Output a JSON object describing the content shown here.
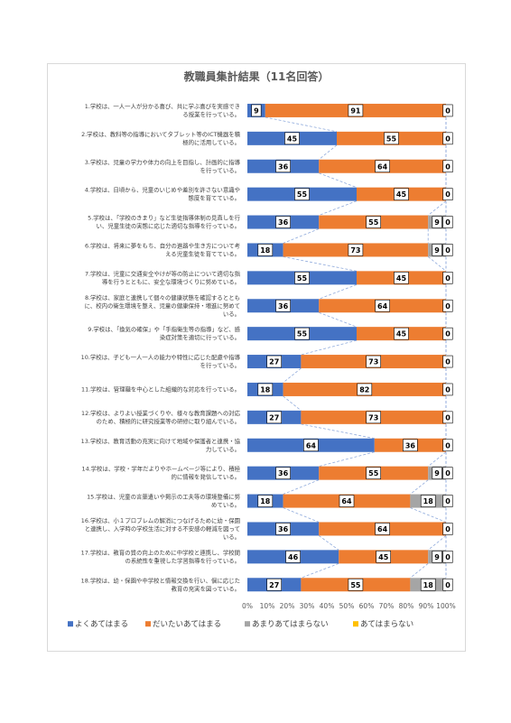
{
  "chart_data": {
    "type": "bar",
    "orientation": "horizontal",
    "stacked": "percent",
    "title": "教職員集計結果（11名回答）",
    "xlim": [
      0,
      100
    ],
    "x_ticks": [
      "0%",
      "10%",
      "20%",
      "30%",
      "40%",
      "50%",
      "60%",
      "70%",
      "80%",
      "90%",
      "100%"
    ],
    "grid": false,
    "legend_position": "bottom",
    "categories": [
      [
        "1.学校は、一人一人が分かる喜び、共に学ぶ喜びを実感でき",
        "る授業を行っている。"
      ],
      [
        "2.学校は、教科等の指導においてタブレット等のICT機器を積",
        "極的に活用している。"
      ],
      [
        "3.学校は、児童の学力や体力の向上を目指し、計画的に指導",
        "を行っている。"
      ],
      [
        "4.学校は、日頃から、児童のいじめや差別を許さない意識や",
        "態度を育てている。"
      ],
      [
        "5.学校は、「学校のきまり」など生徒指導体制の見直しを行",
        "い、児童生徒の実態に応じた適切な指導を行っている。"
      ],
      [
        "6.学校は、将来に夢をもち、自分の進路や生き方について考",
        "える児童生徒を育てている。"
      ],
      [
        "7.学校は、児童に交通安全やけが等の防止について適切な指",
        "導を行うとともに、安全な環境づくりに努めている。"
      ],
      [
        "8.学校は、家庭と連携して個々の健康状態を確認するととも",
        "に、校内の衛生環境を整え、児童の健康保持・増進に努めて",
        "いる。"
      ],
      [
        "9.学校は、「換気の確保」や「手指衛生等の指導」など、感",
        "染症対策を適切に行っている。"
      ],
      [
        "10.学校は、子ども一人一人の能力や特性に応じた配慮や指導",
        "を行っている。"
      ],
      [
        "11.学校は、管理職を中心とした組織的な対応を行っている。"
      ],
      [
        "12.学校は、よりよい授業づくりや、様々な教育課題への対応",
        "のため、積極的に研究授業等の研修に取り組んでいる。"
      ],
      [
        "13.学校は、教育活動の充実に向けて地域や保護者と連携・協",
        "力している。"
      ],
      [
        "14.学校は、学校・学年だよりやホームページ等により、積極",
        "的に情報を発信している。"
      ],
      [
        "15.学校は、児童の言葉遣いや掲示の工夫等の環境整備に努",
        "めている。"
      ],
      [
        "16.学校は、小１プロブレムの解消につなげるために幼・保園",
        "と連携し、入学時の学校生活に対する不安感の軽減を図って",
        "いる。"
      ],
      [
        "17.学校は、教育の質の向上のために中学校と連携し、学校間",
        "の系統性を重視した学習指導を行っている。"
      ],
      [
        "18.学校は、幼・保園や中学校と情報交換を行い、個に応じた",
        "教育の充実を図っている。"
      ]
    ],
    "series": [
      {
        "name": "よくあてはまる",
        "color": "#4472c4",
        "values": [
          9,
          45,
          36,
          55,
          36,
          18,
          55,
          36,
          55,
          27,
          18,
          27,
          64,
          36,
          18,
          36,
          46,
          27
        ]
      },
      {
        "name": "だいたいあてはまる",
        "color": "#ed7d31",
        "values": [
          91,
          55,
          64,
          45,
          55,
          73,
          45,
          64,
          45,
          73,
          82,
          73,
          36,
          55,
          64,
          64,
          45,
          55
        ]
      },
      {
        "name": "あまりあてはまらない",
        "color": "#a5a5a5",
        "values": [
          0,
          0,
          0,
          0,
          9,
          9,
          0,
          0,
          0,
          0,
          0,
          0,
          0,
          9,
          18,
          0,
          9,
          18
        ]
      },
      {
        "name": "あてはまらない",
        "color": "#ffc000",
        "values": [
          0,
          0,
          0,
          0,
          0,
          0,
          0,
          0,
          0,
          0,
          0,
          0,
          0,
          0,
          0,
          0,
          0,
          0
        ]
      }
    ],
    "series_lines": "dashed"
  }
}
